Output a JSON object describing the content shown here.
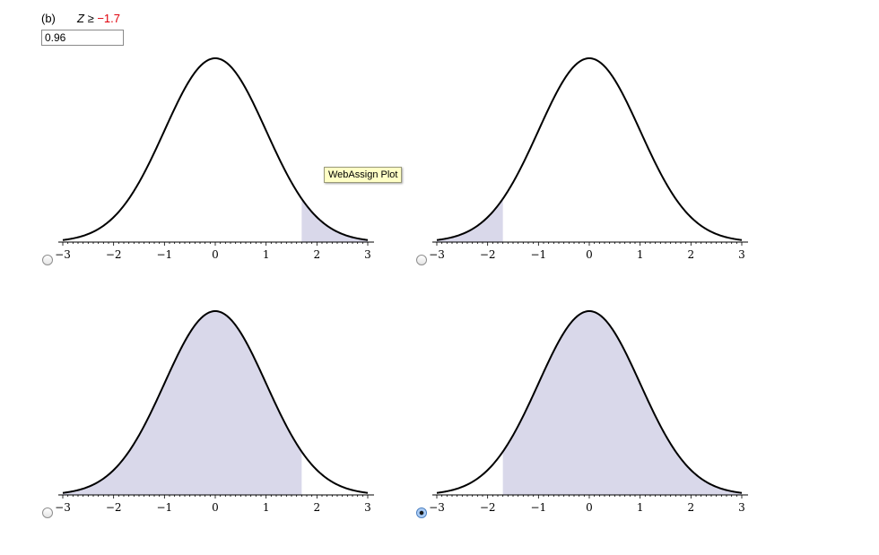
{
  "question": {
    "part_label": "(b)",
    "variable": "Z",
    "operator": "≥",
    "value": "−1.7"
  },
  "answer_input": {
    "value": "0.96"
  },
  "tooltip": {
    "text": "WebAssign Plot"
  },
  "options": [
    {
      "shade_from": 1.7,
      "shade_to": 3,
      "selected": false
    },
    {
      "shade_from": -3,
      "shade_to": -1.7,
      "selected": false
    },
    {
      "shade_from": -3,
      "shade_to": 1.7,
      "selected": false
    },
    {
      "shade_from": -1.7,
      "shade_to": 3,
      "selected": true
    }
  ],
  "x_ticks": [
    "−3",
    "−2",
    "−1",
    "0",
    "1",
    "2",
    "3"
  ],
  "x_tick_values": [
    -3,
    -2,
    -1,
    0,
    1,
    2,
    3
  ],
  "xlim": [
    -3,
    3
  ],
  "colors": {
    "shade": "#d9d8ea",
    "curve": "#000000",
    "question_value": "#e0000b"
  }
}
